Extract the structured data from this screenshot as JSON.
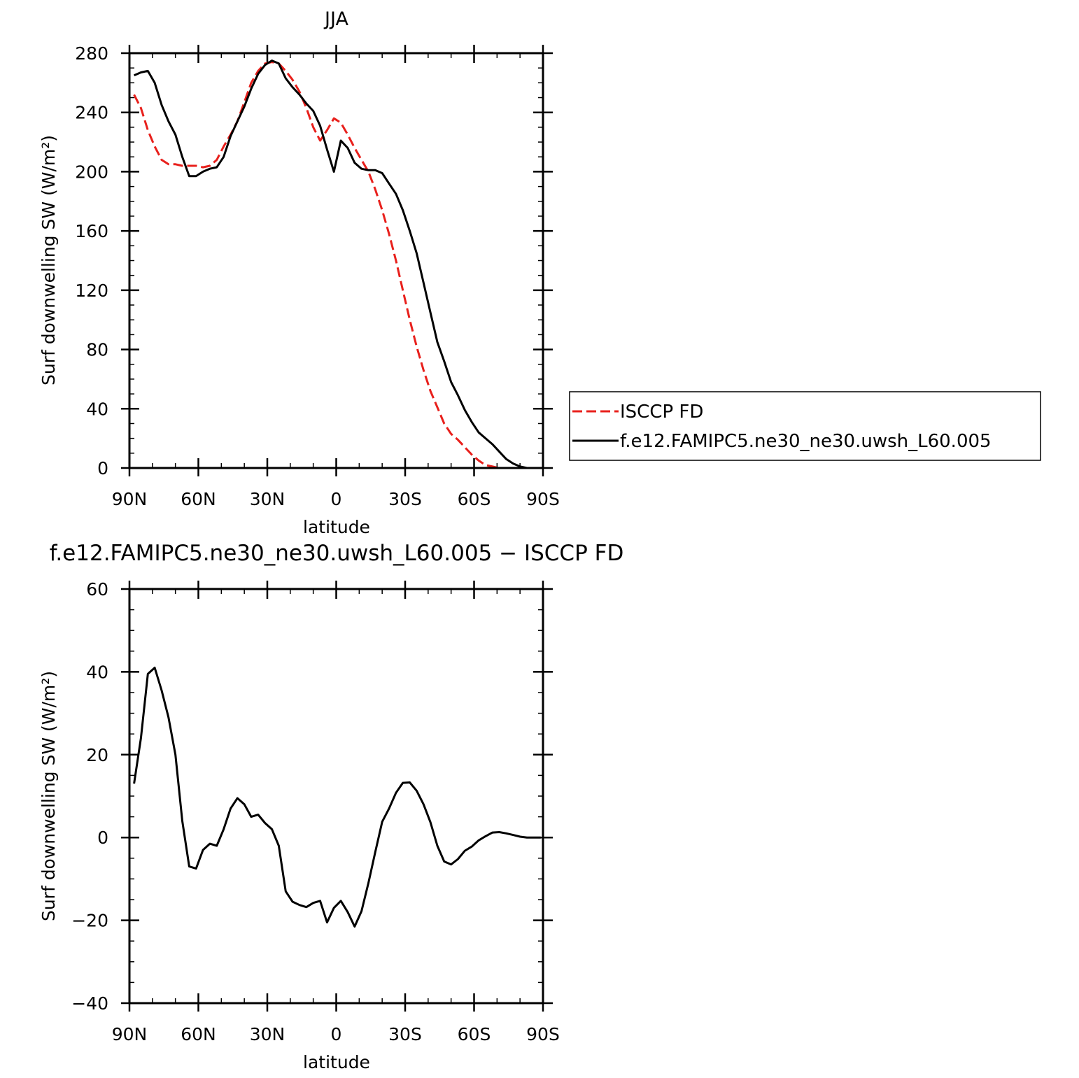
{
  "chart_data": [
    {
      "type": "line",
      "title": "JJA",
      "xlabel": "latitude",
      "ylabel": "Surf downwelling SW (W/m²)",
      "xlim": [
        90,
        -90
      ],
      "ylim": [
        0,
        280
      ],
      "x_ticks": [
        {
          "value": 90,
          "label": "90N"
        },
        {
          "value": 60,
          "label": "60N"
        },
        {
          "value": 30,
          "label": "30N"
        },
        {
          "value": 0,
          "label": "0"
        },
        {
          "value": -30,
          "label": "30S"
        },
        {
          "value": -60,
          "label": "60S"
        },
        {
          "value": -90,
          "label": "90S"
        }
      ],
      "y_ticks": [
        0,
        40,
        80,
        120,
        160,
        200,
        240,
        280
      ],
      "legend": {
        "position": "right",
        "entries": [
          "ISCCP FD",
          "f.e12.FAMIPC5.ne30_ne30.uwsh_L60.005"
        ]
      },
      "series": [
        {
          "name": "ISCCP FD",
          "color": "#e8201c",
          "style": "dashed",
          "x": [
            88,
            85,
            82,
            79,
            76,
            73,
            70,
            67,
            64,
            61,
            58,
            55,
            52,
            49,
            46,
            43,
            40,
            37,
            34,
            31,
            28,
            25,
            22,
            19,
            16,
            13,
            10,
            7,
            4,
            1,
            -2,
            -5,
            -8,
            -11,
            -14,
            -17,
            -20,
            -23,
            -26,
            -29,
            -32,
            -35,
            -38,
            -41,
            -44,
            -47,
            -50,
            -53,
            -56,
            -59,
            -62,
            -65,
            -68,
            -71,
            -74,
            -77,
            -80,
            -83,
            -86,
            -89
          ],
          "y": [
            252,
            243,
            228,
            217,
            208,
            205,
            205,
            204,
            204,
            204,
            203,
            204,
            208,
            217,
            225,
            234,
            247,
            260,
            268,
            273,
            274,
            273,
            268,
            262,
            254,
            243,
            230,
            221,
            228,
            236,
            233,
            225,
            216,
            208,
            200,
            188,
            174,
            158,
            140,
            120,
            100,
            82,
            66,
            52,
            41,
            30,
            23,
            19,
            14,
            9,
            5,
            2,
            1,
            0,
            0,
            0,
            0,
            0,
            0,
            0
          ]
        },
        {
          "name": "f.e12.FAMIPC5.ne30_ne30.uwsh_L60.005",
          "color": "#000000",
          "style": "solid",
          "x": [
            88,
            85,
            82,
            79,
            76,
            73,
            70,
            67,
            64,
            61,
            58,
            55,
            52,
            49,
            46,
            43,
            40,
            37,
            34,
            31,
            28,
            25,
            22,
            19,
            16,
            13,
            10,
            7,
            4,
            1,
            -2,
            -5,
            -8,
            -11,
            -14,
            -17,
            -20,
            -23,
            -26,
            -29,
            -32,
            -35,
            -38,
            -41,
            -44,
            -47,
            -50,
            -53,
            -56,
            -59,
            -62,
            -65,
            -68,
            -71,
            -74,
            -77,
            -80,
            -83,
            -86,
            -89
          ],
          "y": [
            265,
            267,
            268,
            260,
            245,
            234,
            225,
            210,
            197,
            197,
            200,
            202,
            203,
            210,
            224,
            234,
            244,
            256,
            266,
            272,
            275,
            273,
            263,
            257,
            252,
            246,
            241,
            231,
            215,
            200,
            221,
            216,
            206,
            202,
            201,
            201,
            199,
            192,
            185,
            174,
            160,
            145,
            125,
            105,
            85,
            72,
            58,
            49,
            39,
            31,
            24,
            20,
            16,
            11,
            6,
            3,
            1,
            0,
            0,
            0
          ]
        }
      ]
    },
    {
      "type": "line",
      "title": "f.e12.FAMIPC5.ne30_ne30.uwsh_L60.005 − ISCCP FD",
      "xlabel": "latitude",
      "ylabel": "Surf downwelling SW (W/m²)",
      "xlim": [
        90,
        -90
      ],
      "ylim": [
        -40,
        60
      ],
      "x_ticks": [
        {
          "value": 90,
          "label": "90N"
        },
        {
          "value": 60,
          "label": "60N"
        },
        {
          "value": 30,
          "label": "30N"
        },
        {
          "value": 0,
          "label": "0"
        },
        {
          "value": -30,
          "label": "30S"
        },
        {
          "value": -60,
          "label": "60S"
        },
        {
          "value": -90,
          "label": "90S"
        }
      ],
      "y_ticks": [
        -40,
        -20,
        0,
        20,
        40,
        60
      ],
      "series": [
        {
          "color": "#000000",
          "style": "solid",
          "x": [
            88,
            85,
            82,
            79,
            76,
            73,
            70,
            67,
            64,
            61,
            58,
            55,
            52,
            49,
            46,
            43,
            40,
            37,
            34,
            31,
            28,
            25,
            22,
            19,
            16,
            13,
            10,
            7,
            4,
            1,
            -2,
            -5,
            -8,
            -11,
            -14,
            -17,
            -20,
            -23,
            -26,
            -29,
            -32,
            -35,
            -38,
            -41,
            -44,
            -47,
            -50,
            -53,
            -56,
            -59,
            -62,
            -65,
            -68,
            -71,
            -74,
            -77,
            -80,
            -83,
            -86,
            -89
          ],
          "y": [
            13,
            24,
            39.5,
            41,
            35.5,
            29,
            20,
            4,
            -7,
            -7.5,
            -3,
            -1.5,
            -2,
            2,
            7,
            9.5,
            8,
            5,
            5.5,
            3.5,
            2,
            -2,
            -13,
            -15.5,
            -16.3,
            -16.8,
            -15.8,
            -15.3,
            -20.5,
            -17,
            -15.3,
            -18,
            -21.5,
            -17.8,
            -11,
            -3.5,
            3.8,
            7,
            10.8,
            13.2,
            13.3,
            11.3,
            8,
            3.7,
            -2,
            -5.8,
            -6.5,
            -5.2,
            -3.2,
            -2.2,
            -0.7,
            0.3,
            1.2,
            1.3,
            1,
            0.6,
            0.2,
            0,
            0,
            0
          ]
        }
      ]
    }
  ]
}
